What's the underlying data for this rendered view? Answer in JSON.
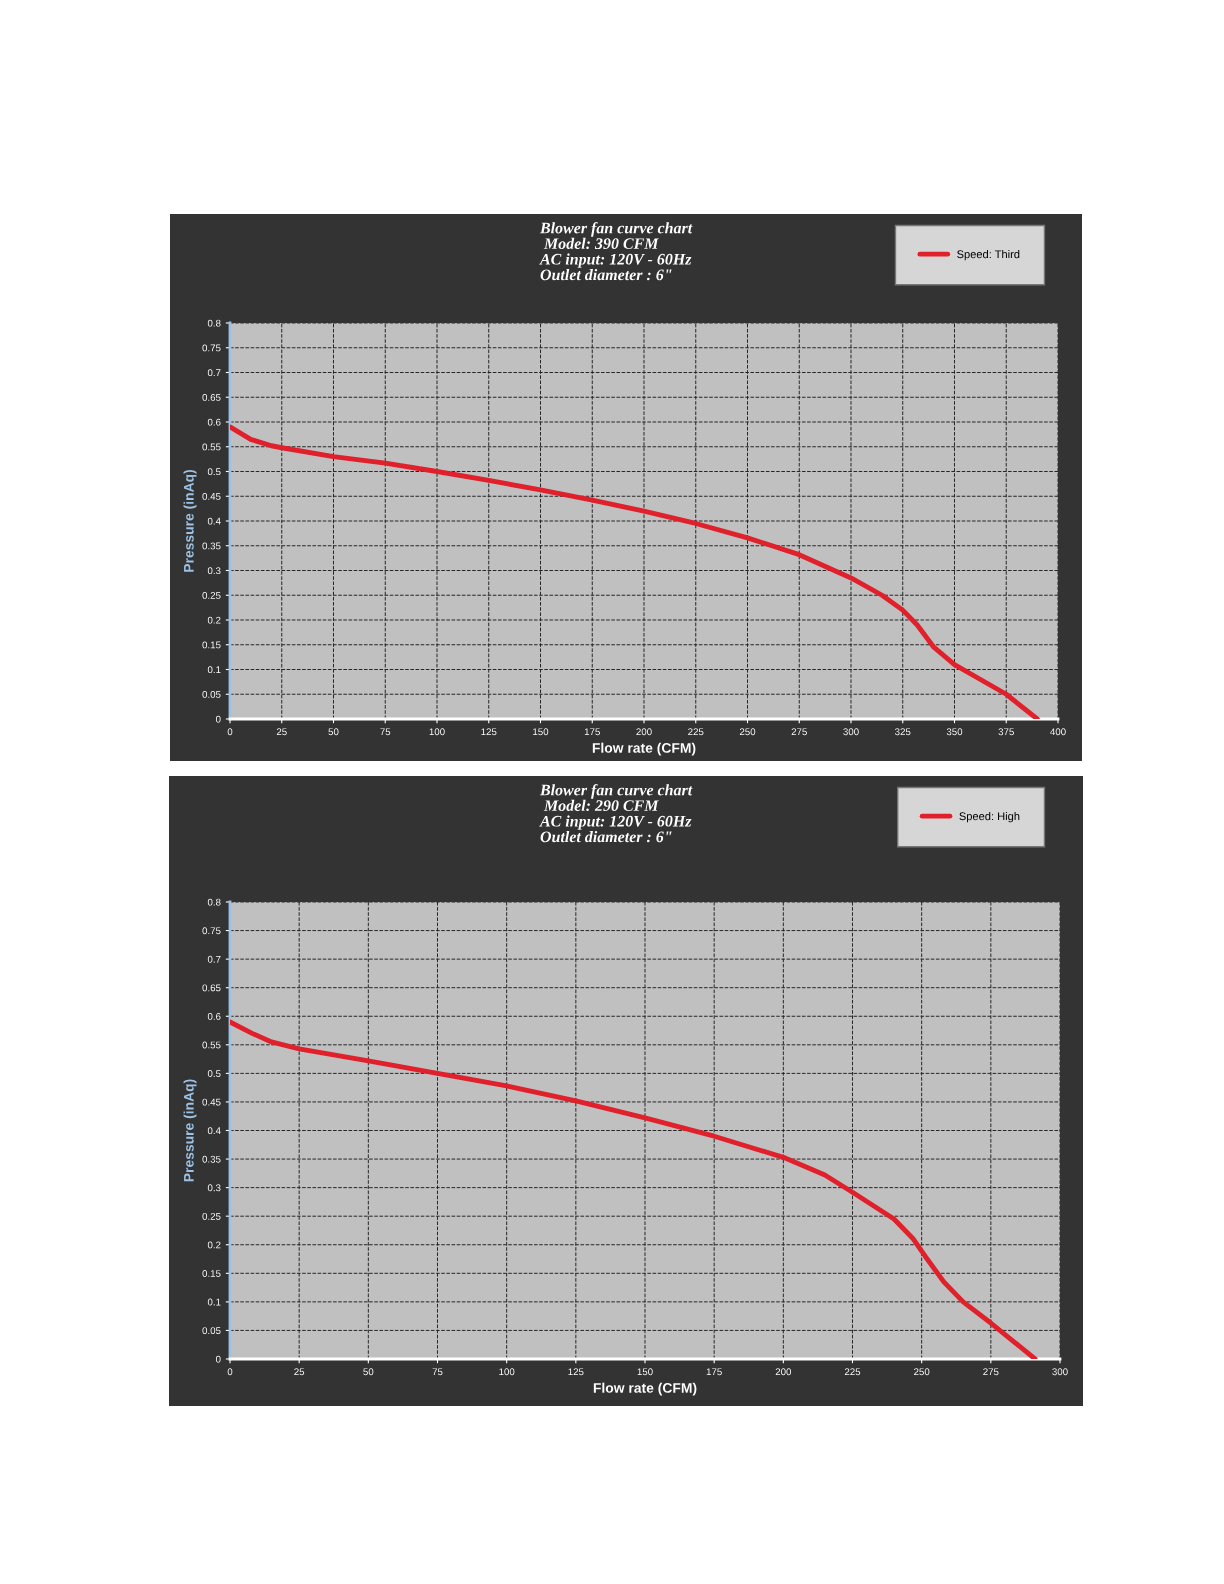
{
  "chart_data": [
    {
      "type": "line",
      "title": "Blower fan curve chart\n Model: 390 CFM\nAC input: 120V - 60Hz\nOutlet diameter : 6\"",
      "xlabel": "Flow rate (CFM)",
      "ylabel": "Pressure (inAq)",
      "series": [
        {
          "name": "Speed: Third",
          "color": "#e0202a",
          "x": [
            0,
            10,
            20,
            25,
            50,
            75,
            100,
            125,
            150,
            175,
            200,
            225,
            250,
            275,
            300,
            315,
            325,
            332,
            340,
            350,
            375,
            390
          ],
          "values": [
            0.59,
            0.565,
            0.552,
            0.548,
            0.53,
            0.517,
            0.5,
            0.482,
            0.463,
            0.442,
            0.42,
            0.395,
            0.366,
            0.332,
            0.285,
            0.25,
            0.22,
            0.19,
            0.145,
            0.11,
            0.05,
            0.0
          ]
        }
      ],
      "xlim": [
        0,
        400
      ],
      "xticks": [
        0,
        25,
        50,
        75,
        100,
        125,
        150,
        175,
        200,
        225,
        250,
        275,
        300,
        325,
        350,
        375,
        400
      ],
      "ylim": [
        0,
        0.8
      ],
      "yticks": [
        0,
        0.05,
        0.1,
        0.15,
        0.2,
        0.25,
        0.3,
        0.35,
        0.4,
        0.45,
        0.5,
        0.55,
        0.6,
        0.65,
        0.7,
        0.75,
        0.8
      ],
      "grid": true,
      "legend": "top right",
      "marker": "none",
      "line_style": "solid"
    },
    {
      "type": "line",
      "title": "Blower fan curve chart\n Model: 290 CFM\nAC input: 120V - 60Hz\nOutlet diameter : 6\"",
      "xlabel": "Flow rate (CFM)",
      "ylabel": "Pressure (inAq)",
      "series": [
        {
          "name": "Speed: High",
          "color": "#e0202a",
          "x": [
            0,
            8,
            15,
            25,
            50,
            75,
            100,
            125,
            150,
            175,
            200,
            215,
            225,
            240,
            247,
            252,
            258,
            265,
            275,
            291
          ],
          "values": [
            0.59,
            0.57,
            0.555,
            0.543,
            0.522,
            0.5,
            0.478,
            0.452,
            0.422,
            0.39,
            0.353,
            0.322,
            0.292,
            0.245,
            0.21,
            0.175,
            0.135,
            0.1,
            0.063,
            0.0
          ]
        }
      ],
      "xlim": [
        0,
        300
      ],
      "xticks": [
        0,
        25,
        50,
        75,
        100,
        125,
        150,
        175,
        200,
        225,
        250,
        275,
        300
      ],
      "ylim": [
        0,
        0.8
      ],
      "yticks": [
        0,
        0.05,
        0.1,
        0.15,
        0.2,
        0.25,
        0.3,
        0.35,
        0.4,
        0.45,
        0.5,
        0.55,
        0.6,
        0.65,
        0.7,
        0.75,
        0.8
      ],
      "grid": true,
      "legend": "top right",
      "marker": "none",
      "line_style": "solid"
    }
  ]
}
